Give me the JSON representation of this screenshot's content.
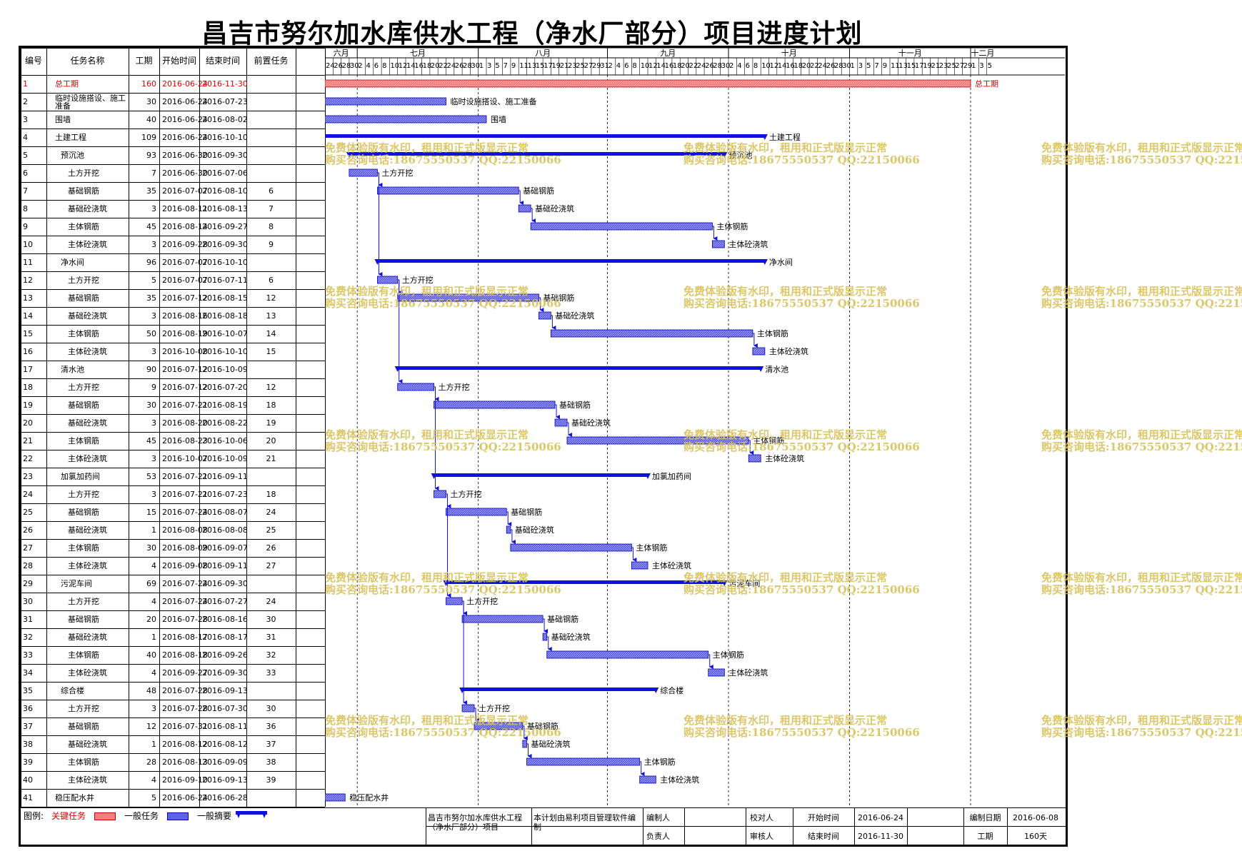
{
  "title": "昌吉市努尔加水库供水工程（净水厂部分）项目进度计划",
  "headers": {
    "id": "编号",
    "name": "任务名称",
    "dur": "工期",
    "start": "开始时间",
    "end": "结束时间",
    "pred": "前置任务"
  },
  "months": [
    {
      "label": "六月",
      "days": [
        "24",
        "26",
        "28",
        "30"
      ]
    },
    {
      "label": "七月",
      "days": [
        "2",
        "4",
        "6",
        "8",
        "10",
        "12",
        "14",
        "16",
        "18",
        "20",
        "22",
        "24",
        "26",
        "28",
        "30"
      ]
    },
    {
      "label": "八月",
      "days": [
        "1",
        "3",
        "5",
        "7",
        "9",
        "11",
        "13",
        "15",
        "17",
        "19",
        "21",
        "23",
        "25",
        "27",
        "29",
        "31"
      ]
    },
    {
      "label": "九月",
      "days": [
        "2",
        "4",
        "6",
        "8",
        "10",
        "12",
        "14",
        "16",
        "18",
        "20",
        "22",
        "24",
        "26",
        "28",
        "30"
      ]
    },
    {
      "label": "十月",
      "days": [
        "2",
        "4",
        "6",
        "8",
        "10",
        "12",
        "14",
        "16",
        "18",
        "20",
        "22",
        "24",
        "26",
        "28",
        "30"
      ]
    },
    {
      "label": "十一月",
      "days": [
        "1",
        "3",
        "5",
        "7",
        "9",
        "11",
        "13",
        "15",
        "17",
        "19",
        "21",
        "23",
        "25",
        "27",
        "29"
      ]
    },
    {
      "label": "十二月",
      "days": [
        "1",
        "3",
        "5"
      ]
    }
  ],
  "tasks": [
    {
      "id": "1",
      "name": "总工期",
      "dur": "160",
      "start": "2016-06-24",
      "end": "2016-11-30",
      "pred": "",
      "level": 0,
      "type": "critical",
      "label": "总工期"
    },
    {
      "id": "2",
      "name": "临时设施搭设、施工准备",
      "dur": "30",
      "start": "2016-06-24",
      "end": "2016-07-23",
      "pred": "",
      "level": 0,
      "type": "task",
      "label": "临时设施搭设、施工准备"
    },
    {
      "id": "3",
      "name": "围墙",
      "dur": "40",
      "start": "2016-06-24",
      "end": "2016-08-02",
      "pred": "",
      "level": 0,
      "type": "task",
      "label": "围墙"
    },
    {
      "id": "4",
      "name": "土建工程",
      "dur": "109",
      "start": "2016-06-24",
      "end": "2016-10-10",
      "pred": "",
      "level": 0,
      "type": "summary",
      "label": "土建工程"
    },
    {
      "id": "5",
      "name": "预沉池",
      "dur": "93",
      "start": "2016-06-30",
      "end": "2016-09-30",
      "pred": "",
      "level": 1,
      "type": "summary",
      "label": "预沉池"
    },
    {
      "id": "6",
      "name": "土方开挖",
      "dur": "7",
      "start": "2016-06-30",
      "end": "2016-07-06",
      "pred": "",
      "level": 2,
      "type": "task",
      "label": "土方开挖"
    },
    {
      "id": "7",
      "name": "基础钢筋",
      "dur": "35",
      "start": "2016-07-07",
      "end": "2016-08-10",
      "pred": "6",
      "level": 2,
      "type": "task",
      "label": "基础钢筋"
    },
    {
      "id": "8",
      "name": "基础砼浇筑",
      "dur": "3",
      "start": "2016-08-11",
      "end": "2016-08-13",
      "pred": "7",
      "level": 2,
      "type": "task",
      "label": "基础砼浇筑"
    },
    {
      "id": "9",
      "name": "主体钢筋",
      "dur": "45",
      "start": "2016-08-14",
      "end": "2016-09-27",
      "pred": "8",
      "level": 2,
      "type": "task",
      "label": "主体钢筋"
    },
    {
      "id": "10",
      "name": "主体砼浇筑",
      "dur": "3",
      "start": "2016-09-28",
      "end": "2016-09-30",
      "pred": "9",
      "level": 2,
      "type": "task",
      "label": "主体砼浇筑"
    },
    {
      "id": "11",
      "name": "净水间",
      "dur": "96",
      "start": "2016-07-07",
      "end": "2016-10-10",
      "pred": "",
      "level": 1,
      "type": "summary",
      "label": "净水间"
    },
    {
      "id": "12",
      "name": "土方开挖",
      "dur": "5",
      "start": "2016-07-07",
      "end": "2016-07-11",
      "pred": "6",
      "level": 2,
      "type": "task",
      "label": "土方开挖"
    },
    {
      "id": "13",
      "name": "基础钢筋",
      "dur": "35",
      "start": "2016-07-12",
      "end": "2016-08-15",
      "pred": "12",
      "level": 2,
      "type": "task",
      "label": "基础钢筋"
    },
    {
      "id": "14",
      "name": "基础砼浇筑",
      "dur": "3",
      "start": "2016-08-16",
      "end": "2016-08-18",
      "pred": "13",
      "level": 2,
      "type": "task",
      "label": "基础砼浇筑"
    },
    {
      "id": "15",
      "name": "主体钢筋",
      "dur": "50",
      "start": "2016-08-19",
      "end": "2016-10-07",
      "pred": "14",
      "level": 2,
      "type": "task",
      "label": "主体钢筋"
    },
    {
      "id": "16",
      "name": "主体砼浇筑",
      "dur": "3",
      "start": "2016-10-08",
      "end": "2016-10-10",
      "pred": "15",
      "level": 2,
      "type": "task",
      "label": "主体砼浇筑"
    },
    {
      "id": "17",
      "name": "清水池",
      "dur": "90",
      "start": "2016-07-12",
      "end": "2016-10-09",
      "pred": "",
      "level": 1,
      "type": "summary",
      "label": "清水池"
    },
    {
      "id": "18",
      "name": "土方开挖",
      "dur": "9",
      "start": "2016-07-12",
      "end": "2016-07-20",
      "pred": "12",
      "level": 2,
      "type": "task",
      "label": "土方开挖"
    },
    {
      "id": "19",
      "name": "基础钢筋",
      "dur": "30",
      "start": "2016-07-21",
      "end": "2016-08-19",
      "pred": "18",
      "level": 2,
      "type": "task",
      "label": "基础钢筋"
    },
    {
      "id": "20",
      "name": "基础砼浇筑",
      "dur": "3",
      "start": "2016-08-20",
      "end": "2016-08-22",
      "pred": "19",
      "level": 2,
      "type": "task",
      "label": "基础砼浇筑"
    },
    {
      "id": "21",
      "name": "主体钢筋",
      "dur": "45",
      "start": "2016-08-23",
      "end": "2016-10-06",
      "pred": "20",
      "level": 2,
      "type": "task",
      "label": "主体钢筋"
    },
    {
      "id": "22",
      "name": "主体砼浇筑",
      "dur": "3",
      "start": "2016-10-07",
      "end": "2016-10-09",
      "pred": "21",
      "level": 2,
      "type": "task",
      "label": "主体砼浇筑"
    },
    {
      "id": "23",
      "name": "加氯加药间",
      "dur": "53",
      "start": "2016-07-21",
      "end": "2016-09-11",
      "pred": "",
      "level": 1,
      "type": "summary",
      "label": "加氯加药间"
    },
    {
      "id": "24",
      "name": "土方开挖",
      "dur": "3",
      "start": "2016-07-21",
      "end": "2016-07-23",
      "pred": "18",
      "level": 2,
      "type": "task",
      "label": "土方开挖"
    },
    {
      "id": "25",
      "name": "基础钢筋",
      "dur": "15",
      "start": "2016-07-24",
      "end": "2016-08-07",
      "pred": "24",
      "level": 2,
      "type": "task",
      "label": "基础钢筋"
    },
    {
      "id": "26",
      "name": "基础砼浇筑",
      "dur": "1",
      "start": "2016-08-08",
      "end": "2016-08-08",
      "pred": "25",
      "level": 2,
      "type": "task",
      "label": "基础砼浇筑"
    },
    {
      "id": "27",
      "name": "主体钢筋",
      "dur": "30",
      "start": "2016-08-09",
      "end": "2016-09-07",
      "pred": "26",
      "level": 2,
      "type": "task",
      "label": "主体钢筋"
    },
    {
      "id": "28",
      "name": "主体砼浇筑",
      "dur": "4",
      "start": "2016-09-08",
      "end": "2016-09-11",
      "pred": "27",
      "level": 2,
      "type": "task",
      "label": "主体砼浇筑"
    },
    {
      "id": "29",
      "name": "污泥车间",
      "dur": "69",
      "start": "2016-07-24",
      "end": "2016-09-30",
      "pred": "",
      "level": 1,
      "type": "summary",
      "label": "污泥车间"
    },
    {
      "id": "30",
      "name": "土方开挖",
      "dur": "4",
      "start": "2016-07-24",
      "end": "2016-07-27",
      "pred": "24",
      "level": 2,
      "type": "task",
      "label": "土方开挖"
    },
    {
      "id": "31",
      "name": "基础钢筋",
      "dur": "20",
      "start": "2016-07-28",
      "end": "2016-08-16",
      "pred": "30",
      "level": 2,
      "type": "task",
      "label": "基础钢筋"
    },
    {
      "id": "32",
      "name": "基础砼浇筑",
      "dur": "1",
      "start": "2016-08-17",
      "end": "2016-08-17",
      "pred": "31",
      "level": 2,
      "type": "task",
      "label": "基础砼浇筑"
    },
    {
      "id": "33",
      "name": "主体钢筋",
      "dur": "40",
      "start": "2016-08-18",
      "end": "2016-09-26",
      "pred": "32",
      "level": 2,
      "type": "task",
      "label": "主体钢筋"
    },
    {
      "id": "34",
      "name": "主体砼浇筑",
      "dur": "4",
      "start": "2016-09-27",
      "end": "2016-09-30",
      "pred": "33",
      "level": 2,
      "type": "task",
      "label": "主体砼浇筑"
    },
    {
      "id": "35",
      "name": "综合楼",
      "dur": "48",
      "start": "2016-07-28",
      "end": "2016-09-13",
      "pred": "",
      "level": 1,
      "type": "summary",
      "label": "综合楼"
    },
    {
      "id": "36",
      "name": "土方开挖",
      "dur": "3",
      "start": "2016-07-28",
      "end": "2016-07-30",
      "pred": "30",
      "level": 2,
      "type": "task",
      "label": "土方开挖"
    },
    {
      "id": "37",
      "name": "基础钢筋",
      "dur": "12",
      "start": "2016-07-31",
      "end": "2016-08-11",
      "pred": "36",
      "level": 2,
      "type": "task",
      "label": "基础钢筋"
    },
    {
      "id": "38",
      "name": "基础砼浇筑",
      "dur": "1",
      "start": "2016-08-12",
      "end": "2016-08-12",
      "pred": "37",
      "level": 2,
      "type": "task",
      "label": "基础砼浇筑"
    },
    {
      "id": "39",
      "name": "主体钢筋",
      "dur": "28",
      "start": "2016-08-13",
      "end": "2016-09-09",
      "pred": "38",
      "level": 2,
      "type": "task",
      "label": "主体钢筋"
    },
    {
      "id": "40",
      "name": "主体砼浇筑",
      "dur": "4",
      "start": "2016-09-10",
      "end": "2016-09-13",
      "pred": "39",
      "level": 2,
      "type": "task",
      "label": "主体砼浇筑"
    },
    {
      "id": "41",
      "name": "稳压配水井",
      "dur": "5",
      "start": "2016-06-24",
      "end": "2016-06-28",
      "pred": "",
      "level": 0,
      "type": "task",
      "label": "稳压配水井"
    }
  ],
  "watermark": {
    "line1": "免费体验版有水印，租用和正式版显示正常",
    "line2": "购买咨询电话:18675550537 QQ:22150066"
  },
  "legend": {
    "label": "图例:",
    "critical": "关键任务",
    "task": "一般任务",
    "summary": "一般摘要"
  },
  "footer": {
    "project": "昌吉市努尔加水库供水工程（净水厂部分）项目",
    "software": "本计划由易利项目管理软件编制",
    "compiler_label": "编制人",
    "compiler": "",
    "checker_label": "校对人",
    "checker": "",
    "start_label": "开始时间",
    "start": "2016-06-24",
    "date_label": "编制日期",
    "date": "2016-06-08",
    "owner_label": "负责人",
    "owner": "",
    "reviewer_label": "审核人",
    "reviewer": "",
    "end_label": "结束时间",
    "end": "2016-11-30",
    "dur_label": "工期",
    "dur": "160天"
  },
  "colors": {
    "critical": "#f08080",
    "task": "#6060e8",
    "summary": "#1010e0",
    "wm": "#d8c25a"
  }
}
